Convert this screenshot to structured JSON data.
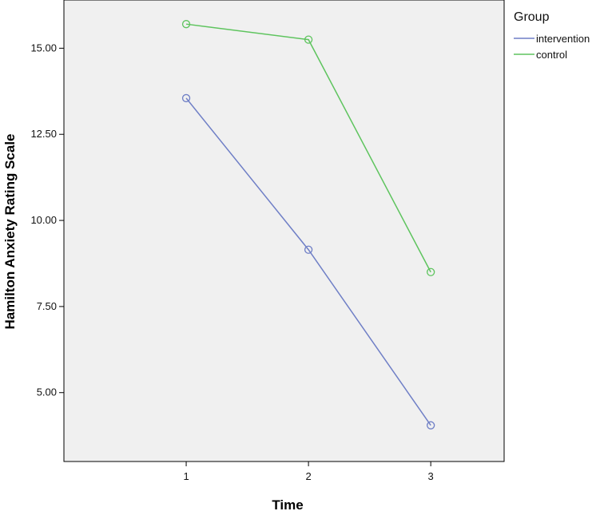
{
  "chart_data": {
    "type": "line",
    "x": [
      1,
      2,
      3
    ],
    "xlabel": "Time",
    "ylabel": "Hamilton Anxiety Rating Scale",
    "ylim": [
      3.0,
      16.4
    ],
    "xlim": [
      0.0,
      3.6
    ],
    "y_ticks": [
      5.0,
      7.5,
      10.0,
      12.5,
      15.0
    ],
    "y_tick_labels": [
      "5.00",
      "7.50",
      "10.00",
      "12.50",
      "15.00"
    ],
    "x_tick_labels": [
      "1",
      "2",
      "3"
    ],
    "grid": false,
    "legend": {
      "title": "Group",
      "placement": "top-right, outside plot"
    },
    "plot_background": "#f0f0f0",
    "series": [
      {
        "name": "intervention",
        "color": "#6f7fc6",
        "values": [
          13.55,
          9.15,
          4.05
        ]
      },
      {
        "name": "control",
        "color": "#5ec45e",
        "values": [
          15.7,
          15.25,
          8.5
        ]
      }
    ]
  }
}
